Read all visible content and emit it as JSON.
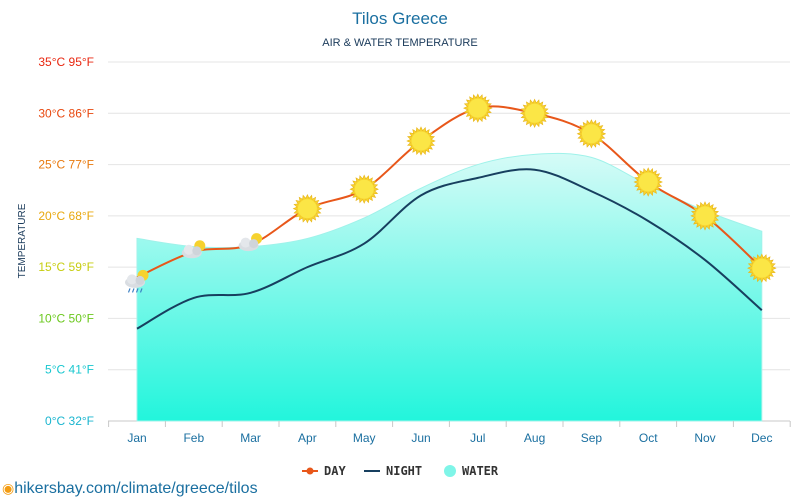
{
  "chart_data": {
    "type": "line",
    "title": "Tilos Greece",
    "subtitle": "AIR & WATER TEMPERATURE",
    "ylabel": "TEMPERATURE",
    "categories": [
      "Jan",
      "Feb",
      "Mar",
      "Apr",
      "May",
      "Jun",
      "Jul",
      "Aug",
      "Sep",
      "Oct",
      "Nov",
      "Dec"
    ],
    "ylim": [
      0,
      35
    ],
    "yticks": [
      {
        "value": 0,
        "label": "0°C 32°F"
      },
      {
        "value": 5,
        "label": "5°C 41°F"
      },
      {
        "value": 10,
        "label": "10°C 50°F"
      },
      {
        "value": 15,
        "label": "15°C 59°F"
      },
      {
        "value": 20,
        "label": "20°C 68°F"
      },
      {
        "value": 25,
        "label": "25°C 77°F"
      },
      {
        "value": 30,
        "label": "30°C 86°F"
      },
      {
        "value": 35,
        "label": "35°C 95°F"
      }
    ],
    "series": [
      {
        "name": "DAY",
        "color": "#e8571a",
        "values": [
          14.0,
          16.5,
          17.2,
          20.7,
          22.6,
          27.3,
          30.5,
          30.0,
          28.0,
          23.3,
          20.0,
          14.9
        ]
      },
      {
        "name": "NIGHT",
        "color": "#173f5f",
        "values": [
          9.0,
          12.0,
          12.5,
          15.0,
          17.3,
          22.0,
          23.7,
          24.5,
          22.4,
          19.5,
          15.7,
          10.8
        ]
      },
      {
        "name": "WATER",
        "color": "#7ff5e8",
        "values": [
          17.8,
          17.0,
          17.0,
          17.8,
          19.8,
          22.7,
          25.0,
          26.0,
          25.7,
          23.0,
          20.5,
          18.5
        ]
      }
    ],
    "weather_icons": [
      "rain-cloud-icon",
      "partly-cloudy-icon",
      "partly-cloudy-icon",
      "sun-icon",
      "sun-icon",
      "sun-icon",
      "sun-icon",
      "sun-icon",
      "sun-icon",
      "sun-icon",
      "sun-icon",
      "sun-icon"
    ],
    "grid": true,
    "legend_position": "bottom-center"
  },
  "footer": {
    "source": "hikersbay.com/climate/greece/tilos"
  }
}
